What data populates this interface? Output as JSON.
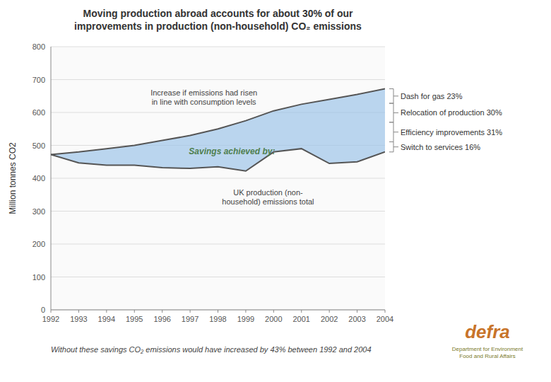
{
  "chart_data": {
    "type": "line",
    "title": "Moving production abroad accounts for about 30% of our\nimprovements in production (non-household) CO₂ emissions",
    "ylabel": "Million tonnes CO2",
    "x": [
      1992,
      1993,
      1994,
      1995,
      1996,
      1997,
      1998,
      1999,
      2000,
      2001,
      2002,
      2003,
      2004
    ],
    "xlim": [
      1992,
      2004
    ],
    "xticks": [
      1992,
      1993,
      1994,
      1995,
      1996,
      1997,
      1998,
      1999,
      2000,
      2001,
      2002,
      2003,
      2004
    ],
    "ylim": [
      0,
      800
    ],
    "yticks": [
      0,
      100,
      200,
      300,
      400,
      500,
      600,
      700,
      800
    ],
    "grid": true,
    "series": [
      {
        "color": "#555555",
        "values": [
          472,
          480,
          490,
          500,
          515,
          530,
          550,
          575,
          605,
          625,
          640,
          655,
          672
        ]
      },
      {
        "color": "#555555",
        "values": [
          472,
          447,
          440,
          440,
          432,
          430,
          435,
          422,
          480,
          490,
          445,
          450,
          480
        ]
      }
    ],
    "annotations": [
      "Increase if emissions had risen\nin line with consumption levels",
      "Savings achieved by:",
      "UK production (non-\nhousehold) emissions total"
    ],
    "brackets": [
      {
        "label": "Dash for gas 23%",
        "from": 672,
        "to": 627.84
      },
      {
        "label": "Relocation of production 30%",
        "from": 627.84,
        "to": 570.24
      },
      {
        "label": "Efficiency improvements 31%",
        "from": 570.24,
        "to": 510.72
      },
      {
        "label": "Switch to services 16%",
        "from": 510.72,
        "to": 480
      }
    ],
    "note": "Without these savings CO₂ emissions would have increased by  43% between 1992 and 2004",
    "logo": [
      "defra",
      "Department for Environment\nFood and Rural Affairs"
    ]
  }
}
